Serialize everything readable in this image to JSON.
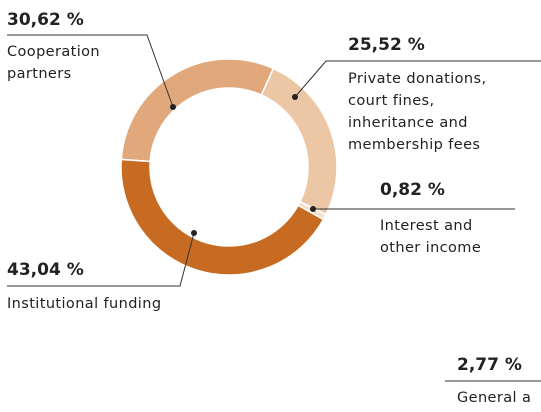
{
  "chart_data": {
    "type": "donut",
    "categories": [
      "Cooperation\npartners",
      "Private donations,\ncourt fines,\ninheritance and\nmembership fees",
      "Interest and\nother income",
      "Institutional funding"
    ],
    "values": [
      30.62,
      25.52,
      0.82,
      43.04
    ],
    "value_labels": [
      "30,62 %",
      "25,52 %",
      "0,82 %",
      "43,04 %"
    ],
    "colors": [
      "#e1a87b",
      "#ebc7a5",
      "#f4e0cc",
      "#c76b22"
    ]
  },
  "cropped_label": {
    "value_label": "2,77 %",
    "text": "General a"
  }
}
